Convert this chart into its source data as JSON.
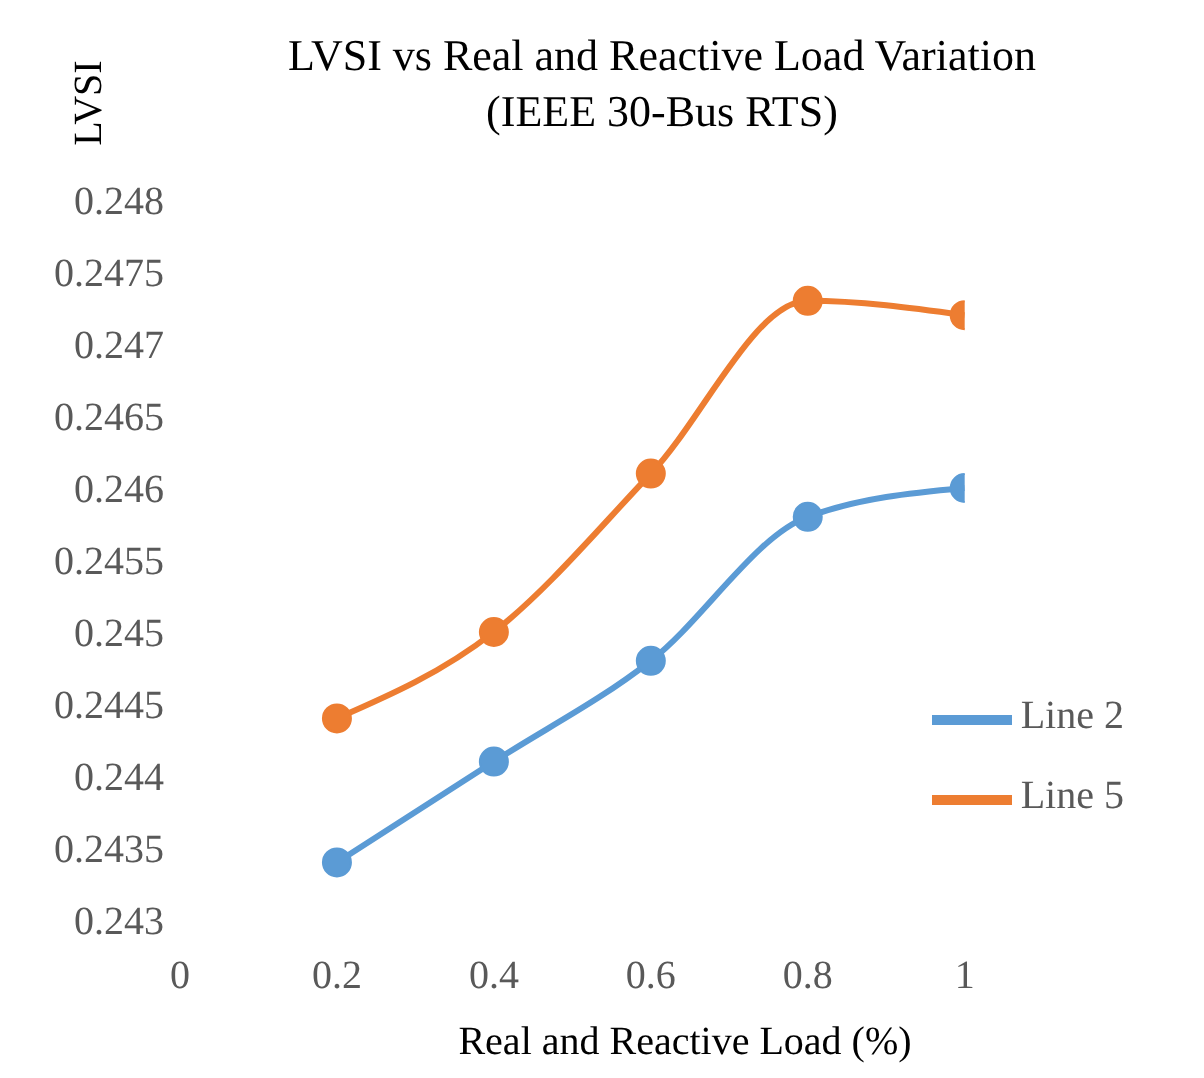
{
  "chart_data": {
    "type": "line",
    "title": "LVSI vs Real and Reactive Load Variation",
    "subtitle": "(IEEE 30-Bus RTS)",
    "xlabel": "Real  and Reactive Load (%)",
    "ylabel": "LVSI",
    "x": [
      0.2,
      0.4,
      0.6,
      0.8,
      1
    ],
    "series": [
      {
        "name": "Line 2",
        "color": "#5b9bd5",
        "values": [
          0.2434,
          0.2441,
          0.2448,
          0.2458,
          0.246
        ]
      },
      {
        "name": "Line 5",
        "color": "#ed7d31",
        "values": [
          0.2444,
          0.245,
          0.2461,
          0.2473,
          0.2472
        ]
      }
    ],
    "xlim": [
      0,
      1
    ],
    "xticks": [
      0,
      0.2,
      0.4,
      0.6,
      0.8,
      1
    ],
    "ylim": [
      0.243,
      0.248
    ],
    "yticks": [
      0.243,
      0.2435,
      0.244,
      0.2445,
      0.245,
      0.2455,
      0.246,
      0.2465,
      0.247,
      0.2475,
      0.248
    ],
    "grid": false,
    "legend": "right",
    "marker": "circle",
    "line_style": "solid"
  }
}
